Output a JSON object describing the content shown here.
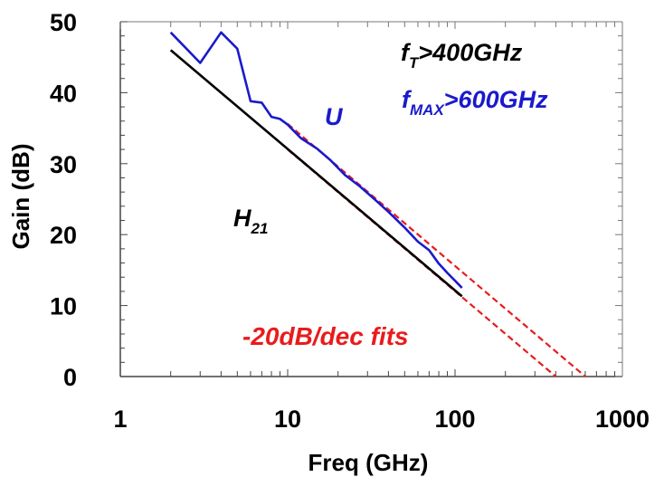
{
  "chart_data": {
    "type": "line",
    "title": "",
    "xlabel": "Freq (GHz)",
    "ylabel": "Gain (dB)",
    "xscale": "log",
    "xlim": [
      1,
      1000
    ],
    "ylim": [
      0,
      50
    ],
    "xticks": [
      1,
      10,
      100,
      1000
    ],
    "xtick_labels": [
      "1",
      "10",
      "100",
      "1000"
    ],
    "yticks": [
      0,
      10,
      20,
      30,
      40,
      50
    ],
    "ytick_labels": [
      "0",
      "10",
      "20",
      "30",
      "40",
      "50"
    ],
    "grid": false,
    "series": [
      {
        "name": "U",
        "color": "#1a1acc",
        "style": "solid",
        "x": [
          2,
          3,
          4,
          5,
          6,
          7,
          8,
          9,
          10,
          12,
          15,
          18,
          22,
          27,
          33,
          40,
          50,
          60,
          70,
          80,
          90,
          110
        ],
        "y": [
          48.5,
          44.2,
          48.5,
          46.2,
          38.8,
          38.6,
          36.6,
          36.3,
          35.5,
          33.6,
          32.1,
          30.5,
          28.4,
          26.8,
          25.0,
          23.2,
          21.0,
          19.0,
          17.8,
          15.9,
          14.6,
          12.5
        ]
      },
      {
        "name": "H21",
        "color": "#000000",
        "style": "solid",
        "x": [
          2,
          110
        ],
        "y": [
          46.0,
          11.3
        ]
      },
      {
        "name": "U fit",
        "color": "#e81c1c",
        "style": "dashed",
        "x": [
          10,
          600
        ],
        "y": [
          35.6,
          0
        ]
      },
      {
        "name": "H21 fit",
        "color": "#e81c1c",
        "style": "dashed",
        "x": [
          10,
          400
        ],
        "y": [
          32.0,
          0
        ]
      }
    ],
    "annotations": {
      "fT": {
        "base": "f",
        "sub": "T",
        "rest": ">400GHz",
        "color": "#000000"
      },
      "fMAX": {
        "base": "f",
        "sub": "MAX",
        "rest": ">600GHz",
        "color": "#1a1acc"
      },
      "U": {
        "text": "U",
        "color": "#1a1acc"
      },
      "H21": {
        "base": "H",
        "sub": "21",
        "color": "#000000"
      },
      "fits": {
        "text": "-20dB/dec fits",
        "color": "#e81c1c"
      }
    }
  }
}
